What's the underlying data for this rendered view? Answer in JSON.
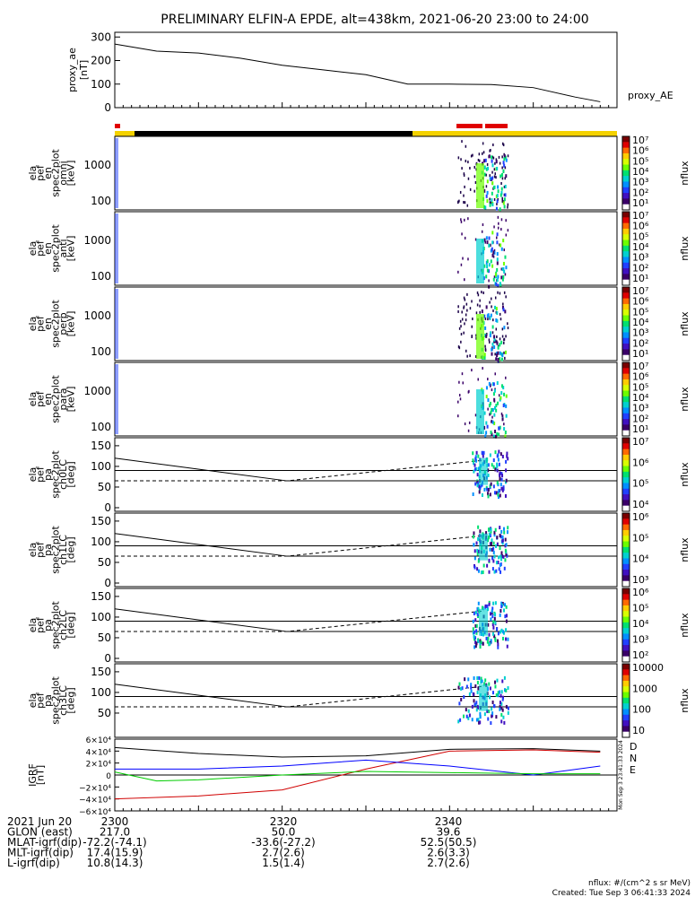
{
  "title": "PRELIMINARY ELFIN-A EPDE, alt=438km, 2021-06-20 23:00 to 24:00",
  "colors": {
    "bar_red": "#e00000",
    "bar_yellow": "#f4d200",
    "bar_black": "#000000",
    "grf_d": "#d00000",
    "grf_n": "#0000ff",
    "grf_e": "#00cc00"
  },
  "panels": {
    "proxy_ae": {
      "ylabel": [
        "proxy_ae",
        "[nT]"
      ],
      "series_label": "proxy_AE",
      "yticks": [
        "300",
        "200",
        "100",
        "0"
      ]
    },
    "spec": [
      {
        "ylabel": [
          "ela",
          "pef",
          "en",
          "spec2plot",
          "omni",
          "[keV]"
        ],
        "yticks": [
          "1000",
          "100"
        ],
        "cbar_ticks": [
          "10⁷",
          "10⁶",
          "10⁵",
          "10⁴",
          "10³",
          "10²",
          "10¹"
        ],
        "cbar_label": "nflux"
      },
      {
        "ylabel": [
          "ela",
          "pef",
          "en",
          "spec2plot",
          "anti",
          "[keV]"
        ],
        "yticks": [
          "1000",
          "100"
        ],
        "cbar_ticks": [
          "10⁷",
          "10⁶",
          "10⁵",
          "10⁴",
          "10³",
          "10²",
          "10¹"
        ],
        "cbar_label": "nflux"
      },
      {
        "ylabel": [
          "ela",
          "pef",
          "en",
          "spec2plot",
          "perp",
          "[keV]"
        ],
        "yticks": [
          "1000",
          "100"
        ],
        "cbar_ticks": [
          "10⁷",
          "10⁶",
          "10⁵",
          "10⁴",
          "10³",
          "10²",
          "10¹"
        ],
        "cbar_label": "nflux"
      },
      {
        "ylabel": [
          "ela",
          "pef",
          "en",
          "spec2plot",
          "para",
          "[keV]"
        ],
        "yticks": [
          "1000",
          "100"
        ],
        "cbar_ticks": [
          "10⁷",
          "10⁶",
          "10⁵",
          "10⁴",
          "10³",
          "10²",
          "10¹"
        ],
        "cbar_label": "nflux"
      }
    ],
    "pa": [
      {
        "ylabel": [
          "ela",
          "pef",
          "pa",
          "spec2plot",
          "ch0LC",
          "[deg]"
        ],
        "yticks": [
          "150",
          "100",
          "50",
          "0"
        ],
        "cbar_ticks": [
          "10⁷",
          "10⁶",
          "10⁵",
          "10⁴"
        ],
        "cbar_label": "nflux"
      },
      {
        "ylabel": [
          "ela",
          "pef",
          "pa",
          "spec2plot",
          "ch1LC",
          "[deg]"
        ],
        "yticks": [
          "150",
          "100",
          "50",
          "0"
        ],
        "cbar_ticks": [
          "10⁶",
          "10⁵",
          "10⁴",
          "10³"
        ],
        "cbar_label": "nflux"
      },
      {
        "ylabel": [
          "ela",
          "pef",
          "pa",
          "spec2plot",
          "ch2LC",
          "[deg]"
        ],
        "yticks": [
          "150",
          "100",
          "50",
          "0"
        ],
        "cbar_ticks": [
          "10⁶",
          "10⁵",
          "10⁴",
          "10³",
          "10²"
        ],
        "cbar_label": "nflux"
      },
      {
        "ylabel": [
          "ela",
          "pef",
          "pa",
          "spec2plot",
          "ch3LC",
          "[deg]"
        ],
        "yticks": [
          "150",
          "100",
          "50"
        ],
        "cbar_ticks": [
          "10000",
          "1000",
          "100",
          "10"
        ],
        "cbar_label": "nflux"
      }
    ],
    "igrf": {
      "ylabel": [
        "IGRF",
        "[nT]"
      ],
      "yticks": [
        "6×10⁴",
        "4×10⁴",
        "2×10⁴",
        "0",
        "−2×10⁴",
        "−4×10⁴",
        "−6×10⁴"
      ],
      "legend": [
        "D",
        "N",
        "E"
      ],
      "side_text": "Mon Sep  3 23:41:33 2024"
    }
  },
  "footer": {
    "row_labels": [
      "2021 Jun 20",
      "GLON (east)",
      "MLAT-igrf(dip)",
      "MLT-igrf(dip)",
      "L-igrf(dip)"
    ],
    "columns": [
      [
        "2300",
        "217.0",
        "-72.2(-74.1)",
        "17.4(15.9)",
        "10.8(14.3)"
      ],
      [
        "2320",
        "50.0",
        "-33.6(-27.2)",
        "2.7(2.6)",
        "1.5(1.4)"
      ],
      [
        "2340",
        "39.6",
        "52.5(50.5)",
        "2.6(3.3)",
        "2.7(2.6)"
      ]
    ],
    "units_note": "nflux: #/(cm^2 s sr MeV)",
    "created": "Created: Tue Sep  3 06:41:33 2024"
  },
  "chart_data": {
    "type": "line",
    "x_unit": "UT (hhmm)",
    "xlim": [
      "2300",
      "2400"
    ],
    "series": [
      {
        "name": "proxy_AE",
        "x": [
          2300,
          2305,
          2310,
          2315,
          2320,
          2325,
          2330,
          2335,
          2340,
          2345,
          2350,
          2355,
          2358
        ],
        "y": [
          270,
          240,
          232,
          210,
          180,
          160,
          140,
          100,
          100,
          98,
          85,
          45,
          25
        ]
      }
    ],
    "ylim_proxy_ae": [
      0,
      320
    ],
    "bursts_keV_panels": {
      "x_range": [
        "2342",
        "2347"
      ],
      "energy_range_keV": [
        60,
        2000
      ]
    },
    "pa_reference_lines_deg": {
      "solid_start": 120,
      "solid_end": 65,
      "dashed_start": 65,
      "dashed_end": 115,
      "horizontal": 90
    },
    "igrf_ylim": [
      -60000,
      60000
    ],
    "igrf_series": [
      {
        "name": "D",
        "x": [
          2300,
          2310,
          2320,
          2330,
          2340,
          2350,
          2358
        ],
        "y": [
          -40000,
          -35000,
          -25000,
          10000,
          40000,
          42000,
          38000
        ]
      },
      {
        "name": "N",
        "x": [
          2300,
          2310,
          2320,
          2330,
          2340,
          2350,
          2358
        ],
        "y": [
          10000,
          10000,
          15000,
          25000,
          15000,
          0,
          15000
        ]
      },
      {
        "name": "E",
        "x": [
          2300,
          2305,
          2310,
          2320,
          2330,
          2340,
          2350,
          2358
        ],
        "y": [
          5000,
          -10000,
          -8000,
          0,
          6000,
          4000,
          2000,
          2000
        ]
      },
      {
        "name": "total",
        "x": [
          2300,
          2310,
          2320,
          2330,
          2340,
          2350,
          2358
        ],
        "y": [
          46000,
          36000,
          30000,
          32000,
          43000,
          44000,
          40000
        ]
      }
    ]
  }
}
